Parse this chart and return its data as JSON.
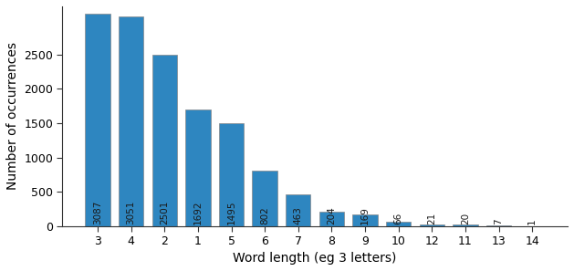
{
  "categories": [
    "3",
    "4",
    "2",
    "1",
    "5",
    "6",
    "7",
    "8",
    "9",
    "10",
    "12",
    "11",
    "13",
    "14"
  ],
  "values": [
    3087,
    3051,
    2501,
    1692,
    1495,
    802,
    463,
    204,
    169,
    66,
    21,
    20,
    7,
    1
  ],
  "bar_color": "#2e86c0",
  "bar_edge_color": "#888888",
  "xlabel": "Word length (eg 3 letters)",
  "ylabel": "Number of occurrences",
  "ylim": [
    0,
    3200
  ],
  "yticks": [
    0,
    500,
    1000,
    1500,
    2000,
    2500
  ],
  "label_color": "#1a1a1a",
  "label_fontsize": 7.5,
  "axis_fontsize": 10,
  "tick_fontsize": 9,
  "background_color": "#ffffff",
  "bar_width": 0.75
}
